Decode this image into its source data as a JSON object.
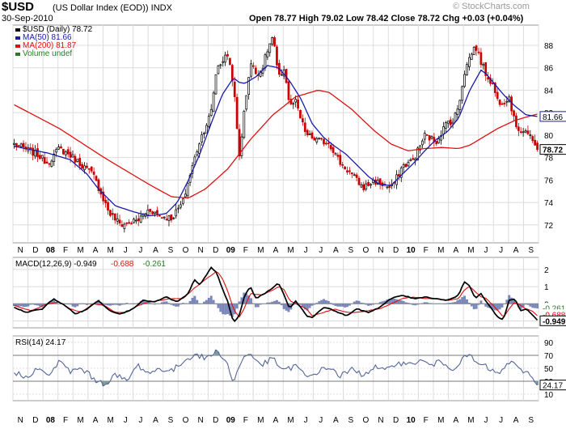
{
  "header": {
    "symbol": "$USD",
    "name": "(US Dollar Index (EOD))",
    "exchange": "INDX",
    "date": "30-Sep-2010",
    "ohlc_text": "Open 78.77   High 79.02   Low 78.42   Close 78.72   Chg +0.03 (+0.04%)",
    "watermark": "© StockCharts.com"
  },
  "colors": {
    "up": "#000000",
    "down": "#cc0000",
    "ma50": "#1a1aa8",
    "ma200": "#dd1111",
    "rsi": "#556699",
    "grid": "#dcdcdc",
    "area": "#5a6aaa"
  },
  "chart_data": [
    {
      "type": "candlestick",
      "title": "$USD (Daily) 78.72",
      "legend": [
        {
          "label": "$USD (Daily) 78.72",
          "color": "#000000"
        },
        {
          "label": "MA(50) 81.66",
          "color": "#1a1aa8"
        },
        {
          "label": "MA(200) 81.87",
          "color": "#dd1111"
        },
        {
          "label": "Volume undef",
          "color": "#2a7a2a"
        }
      ],
      "ylim": [
        70.4,
        89.8
      ],
      "yticks": [
        72,
        74,
        76,
        78,
        80,
        82,
        84,
        86,
        88
      ],
      "last_price": 78.72,
      "ma50_last": 81.66,
      "ma200_last": 81.87,
      "x_months": [
        "N",
        "D",
        "08",
        "F",
        "M",
        "A",
        "M",
        "J",
        "J",
        "A",
        "S",
        "O",
        "N",
        "D",
        "09",
        "F",
        "M",
        "A",
        "M",
        "J",
        "J",
        "A",
        "S",
        "O",
        "N",
        "D",
        "10",
        "F",
        "M",
        "A",
        "M",
        "J",
        "J",
        "A",
        "S"
      ],
      "price_keypoints": [
        [
          0,
          79.2
        ],
        [
          4,
          78.3
        ],
        [
          6,
          77.5
        ],
        [
          8,
          78.8
        ],
        [
          10,
          78.2
        ],
        [
          14,
          76.5
        ],
        [
          17,
          73.0
        ],
        [
          19,
          72.0
        ],
        [
          22,
          72.4
        ],
        [
          24,
          73.4
        ],
        [
          26,
          72.8
        ],
        [
          28,
          72.6
        ],
        [
          30,
          74.0
        ],
        [
          31,
          76.0
        ],
        [
          33,
          79.5
        ],
        [
          35,
          82.0
        ],
        [
          36,
          86.0
        ],
        [
          38,
          87.2
        ],
        [
          39,
          84.5
        ],
        [
          40,
          78.0
        ],
        [
          41,
          82.5
        ],
        [
          42,
          86.5
        ],
        [
          43,
          85.5
        ],
        [
          44,
          85.8
        ],
        [
          45,
          87.5
        ],
        [
          46,
          88.8
        ],
        [
          47,
          85.0
        ],
        [
          48,
          86.0
        ],
        [
          49,
          82.5
        ],
        [
          50,
          83.0
        ],
        [
          51,
          81.3
        ],
        [
          52,
          80.0
        ],
        [
          54,
          79.5
        ],
        [
          56,
          79.3
        ],
        [
          58,
          77.5
        ],
        [
          60,
          76.5
        ],
        [
          62,
          75.3
        ],
        [
          64,
          75.9
        ],
        [
          66,
          75.5
        ],
        [
          67,
          75.2
        ],
        [
          69,
          77.2
        ],
        [
          71,
          77.8
        ],
        [
          73,
          80.0
        ],
        [
          75,
          79.4
        ],
        [
          77,
          81.2
        ],
        [
          78,
          81.2
        ],
        [
          79,
          82.6
        ],
        [
          80,
          85.5
        ],
        [
          81,
          87.0
        ],
        [
          82,
          88.0
        ],
        [
          83,
          86.5
        ],
        [
          84,
          85.3
        ],
        [
          85,
          84.6
        ],
        [
          86,
          83.0
        ],
        [
          87,
          83.0
        ],
        [
          88,
          83.4
        ],
        [
          89,
          81.0
        ],
        [
          90,
          80.4
        ],
        [
          91,
          80.4
        ],
        [
          92,
          79.5
        ],
        [
          93,
          78.72
        ]
      ],
      "ma50_keypoints": [
        [
          0,
          79.0
        ],
        [
          6,
          78.4
        ],
        [
          10,
          77.8
        ],
        [
          13,
          76.5
        ],
        [
          15,
          75.2
        ],
        [
          18,
          73.7
        ],
        [
          21,
          73.2
        ],
        [
          24,
          72.8
        ],
        [
          27,
          73.0
        ],
        [
          29,
          74.0
        ],
        [
          31,
          76.0
        ],
        [
          33,
          78.3
        ],
        [
          35,
          81.0
        ],
        [
          37,
          83.6
        ],
        [
          39,
          85.1
        ],
        [
          40,
          84.7
        ],
        [
          41,
          84.6
        ],
        [
          43,
          85.2
        ],
        [
          45,
          86.2
        ],
        [
          47,
          86.0
        ],
        [
          49,
          84.8
        ],
        [
          51,
          83.2
        ],
        [
          53,
          81.0
        ],
        [
          55,
          79.8
        ],
        [
          57,
          79.0
        ],
        [
          59,
          78.3
        ],
        [
          61,
          77.3
        ],
        [
          63,
          76.3
        ],
        [
          65,
          75.6
        ],
        [
          67,
          75.5
        ],
        [
          69,
          76.5
        ],
        [
          71,
          77.5
        ],
        [
          73,
          78.6
        ],
        [
          75,
          79.6
        ],
        [
          77,
          80.3
        ],
        [
          79,
          81.5
        ],
        [
          81,
          84.0
        ],
        [
          83,
          85.8
        ],
        [
          84,
          85.4
        ],
        [
          85,
          84.8
        ],
        [
          87,
          83.6
        ],
        [
          89,
          82.6
        ],
        [
          91,
          81.8
        ],
        [
          93,
          81.66
        ]
      ],
      "ma200_keypoints": [
        [
          0,
          82.7
        ],
        [
          8,
          80.6
        ],
        [
          16,
          78.0
        ],
        [
          24,
          75.6
        ],
        [
          28,
          74.5
        ],
        [
          31,
          74.4
        ],
        [
          34,
          75.2
        ],
        [
          38,
          77.0
        ],
        [
          42,
          79.6
        ],
        [
          46,
          81.8
        ],
        [
          50,
          83.4
        ],
        [
          54,
          84.0
        ],
        [
          56,
          83.8
        ],
        [
          60,
          82.3
        ],
        [
          64,
          80.4
        ],
        [
          67,
          79.2
        ],
        [
          70,
          78.6
        ],
        [
          73,
          78.8
        ],
        [
          76,
          78.9
        ],
        [
          79,
          78.8
        ],
        [
          81,
          79.1
        ],
        [
          83,
          79.7
        ],
        [
          86,
          80.6
        ],
        [
          89,
          81.3
        ],
        [
          91,
          81.6
        ],
        [
          93,
          81.87
        ]
      ]
    },
    {
      "type": "line",
      "title": "MACD(12,26,9) -0.949, -0.688, -0.261",
      "legend": [
        {
          "label": "MACD(12,26,9) -0.949",
          "color": "#000000"
        },
        {
          "label": "-0.688",
          "color": "#dd1111"
        },
        {
          "label": "-0.261",
          "color": "#2a7a2a"
        }
      ],
      "ylim": [
        -1.4,
        2.7
      ],
      "yticks": [
        -1,
        0,
        1,
        2
      ],
      "last_labels": [
        "-0.261",
        "-0.688",
        "-0.949"
      ],
      "macd_keypoints": [
        [
          0,
          -0.2
        ],
        [
          2,
          -0.5
        ],
        [
          5,
          -0.3
        ],
        [
          7,
          0.3
        ],
        [
          9,
          -0.1
        ],
        [
          11,
          -0.6
        ],
        [
          13,
          -0.3
        ],
        [
          15,
          0.2
        ],
        [
          17,
          -0.4
        ],
        [
          19,
          -0.6
        ],
        [
          21,
          -0.3
        ],
        [
          23,
          0.2
        ],
        [
          25,
          0.1
        ],
        [
          27,
          0.4
        ],
        [
          29,
          0.1
        ],
        [
          31,
          0.6
        ],
        [
          32,
          1.4
        ],
        [
          33,
          1.1
        ],
        [
          35,
          2.1
        ],
        [
          36,
          1.8
        ],
        [
          37,
          0.9
        ],
        [
          38,
          0.1
        ],
        [
          39,
          -1.1
        ],
        [
          40,
          -0.7
        ],
        [
          41,
          0.5
        ],
        [
          42,
          1.0
        ],
        [
          43,
          0.3
        ],
        [
          45,
          0.7
        ],
        [
          47,
          1.2
        ],
        [
          48,
          0.5
        ],
        [
          49,
          -0.3
        ],
        [
          50,
          0.2
        ],
        [
          52,
          -0.7
        ],
        [
          53,
          -0.8
        ],
        [
          55,
          -0.2
        ],
        [
          57,
          -0.4
        ],
        [
          59,
          -0.7
        ],
        [
          61,
          -0.3
        ],
        [
          63,
          -0.5
        ],
        [
          65,
          -0.2
        ],
        [
          67,
          0.3
        ],
        [
          69,
          0.5
        ],
        [
          71,
          0.3
        ],
        [
          73,
          0.4
        ],
        [
          75,
          0.3
        ],
        [
          77,
          0.2
        ],
        [
          79,
          0.5
        ],
        [
          80,
          1.3
        ],
        [
          81,
          1.0
        ],
        [
          82,
          0.3
        ],
        [
          83,
          0.6
        ],
        [
          84,
          0.1
        ],
        [
          86,
          -0.8
        ],
        [
          87,
          -0.9
        ],
        [
          88,
          0.2
        ],
        [
          89,
          0.3
        ],
        [
          90,
          -0.4
        ],
        [
          91,
          -0.3
        ],
        [
          92,
          -0.6
        ],
        [
          93,
          -0.949
        ]
      ],
      "signal_keypoints": [
        [
          0,
          -0.1
        ],
        [
          3,
          -0.4
        ],
        [
          6,
          0.0
        ],
        [
          8,
          0.1
        ],
        [
          10,
          -0.3
        ],
        [
          12,
          -0.5
        ],
        [
          14,
          0.0
        ],
        [
          16,
          -0.1
        ],
        [
          18,
          -0.5
        ],
        [
          20,
          -0.5
        ],
        [
          22,
          -0.1
        ],
        [
          24,
          0.1
        ],
        [
          26,
          0.2
        ],
        [
          28,
          0.3
        ],
        [
          30,
          0.3
        ],
        [
          32,
          0.9
        ],
        [
          34,
          1.4
        ],
        [
          36,
          1.9
        ],
        [
          37,
          1.5
        ],
        [
          38,
          0.7
        ],
        [
          39,
          -0.3
        ],
        [
          40,
          -0.8
        ],
        [
          41,
          -0.2
        ],
        [
          42,
          0.6
        ],
        [
          44,
          0.5
        ],
        [
          46,
          0.8
        ],
        [
          47,
          1.0
        ],
        [
          48,
          0.8
        ],
        [
          49,
          0.2
        ],
        [
          50,
          0.0
        ],
        [
          52,
          -0.3
        ],
        [
          53,
          -0.7
        ],
        [
          55,
          -0.5
        ],
        [
          57,
          -0.3
        ],
        [
          59,
          -0.5
        ],
        [
          61,
          -0.5
        ],
        [
          63,
          -0.4
        ],
        [
          65,
          -0.3
        ],
        [
          67,
          0.0
        ],
        [
          69,
          0.3
        ],
        [
          71,
          0.4
        ],
        [
          73,
          0.3
        ],
        [
          75,
          0.3
        ],
        [
          77,
          0.2
        ],
        [
          79,
          0.3
        ],
        [
          80,
          0.8
        ],
        [
          81,
          1.0
        ],
        [
          82,
          0.7
        ],
        [
          83,
          0.4
        ],
        [
          84,
          0.3
        ],
        [
          86,
          -0.4
        ],
        [
          87,
          -0.8
        ],
        [
          88,
          -0.3
        ],
        [
          89,
          0.1
        ],
        [
          90,
          -0.1
        ],
        [
          91,
          -0.3
        ],
        [
          92,
          -0.4
        ],
        [
          93,
          -0.688
        ]
      ]
    },
    {
      "type": "line",
      "title": "RSI(14) 24.17",
      "ylim": [
        0,
        100
      ],
      "yticks": [
        10,
        30,
        50,
        70,
        90
      ],
      "last_value": 24.17,
      "overbought": 70,
      "oversold": 30,
      "rsi_keypoints": [
        [
          0,
          45
        ],
        [
          2,
          35
        ],
        [
          4,
          50
        ],
        [
          6,
          38
        ],
        [
          8,
          60
        ],
        [
          10,
          45
        ],
        [
          12,
          50
        ],
        [
          14,
          35
        ],
        [
          16,
          25
        ],
        [
          18,
          40
        ],
        [
          20,
          30
        ],
        [
          22,
          55
        ],
        [
          24,
          42
        ],
        [
          26,
          50
        ],
        [
          28,
          45
        ],
        [
          30,
          60
        ],
        [
          32,
          72
        ],
        [
          34,
          65
        ],
        [
          36,
          76
        ],
        [
          37,
          70
        ],
        [
          38,
          55
        ],
        [
          39,
          25
        ],
        [
          40,
          55
        ],
        [
          41,
          68
        ],
        [
          42,
          72
        ],
        [
          44,
          55
        ],
        [
          46,
          65
        ],
        [
          48,
          45
        ],
        [
          50,
          55
        ],
        [
          52,
          35
        ],
        [
          54,
          45
        ],
        [
          56,
          52
        ],
        [
          58,
          38
        ],
        [
          60,
          48
        ],
        [
          62,
          40
        ],
        [
          64,
          52
        ],
        [
          66,
          45
        ],
        [
          68,
          60
        ],
        [
          70,
          55
        ],
        [
          72,
          62
        ],
        [
          74,
          55
        ],
        [
          76,
          60
        ],
        [
          78,
          50
        ],
        [
          80,
          65
        ],
        [
          81,
          72
        ],
        [
          82,
          58
        ],
        [
          84,
          52
        ],
        [
          86,
          40
        ],
        [
          88,
          60
        ],
        [
          89,
          55
        ],
        [
          90,
          45
        ],
        [
          91,
          48
        ],
        [
          92,
          35
        ],
        [
          93,
          24.17
        ]
      ]
    }
  ]
}
